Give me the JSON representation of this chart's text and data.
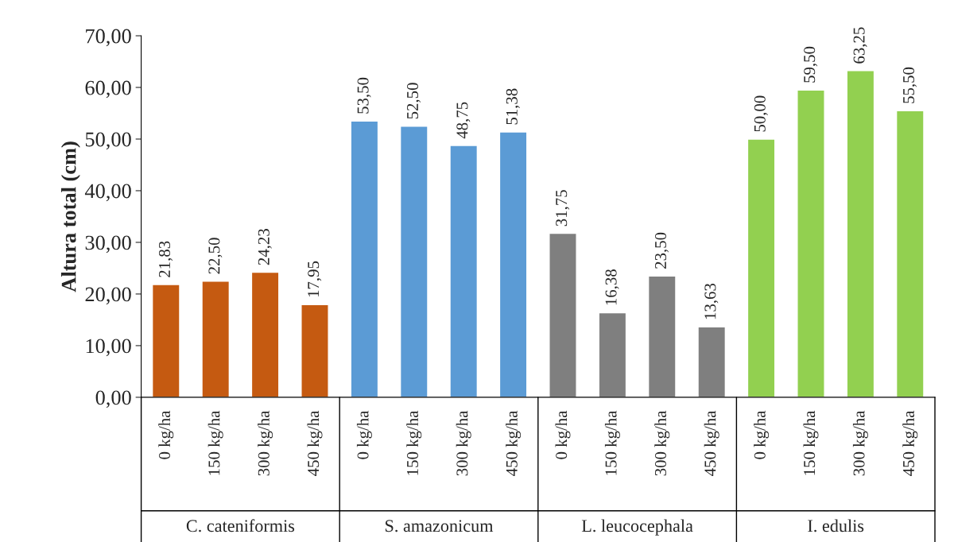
{
  "chart_data": {
    "type": "bar",
    "ylabel": "Altura total (cm)",
    "categories": [
      "0 kg/ha",
      "150 kg/ha",
      "300 kg/ha",
      "450 kg/ha",
      "0 kg/ha",
      "150 kg/ha",
      "300 kg/ha",
      "450 kg/ha",
      "0 kg/ha",
      "150 kg/ha",
      "300 kg/ha",
      "450 kg/ha",
      "0 kg/ha",
      "150 kg/ha",
      "300 kg/ha",
      "450 kg/ha"
    ],
    "values": [
      21.83,
      22.5,
      24.23,
      17.95,
      53.5,
      52.5,
      48.75,
      51.38,
      31.75,
      16.38,
      23.5,
      13.63,
      50.0,
      59.5,
      63.25,
      55.5
    ],
    "value_labels": [
      "21,83",
      "22,50",
      "24,23",
      "17,95",
      "53,50",
      "52,50",
      "48,75",
      "51,38",
      "31,75",
      "16,38",
      "23,50",
      "13,63",
      "50,00",
      "59,50",
      "63,25",
      "55,50"
    ],
    "colors": [
      "#c55a11",
      "#c55a11",
      "#c55a11",
      "#c55a11",
      "#5b9bd5",
      "#5b9bd5",
      "#5b9bd5",
      "#5b9bd5",
      "#7f7f7f",
      "#7f7f7f",
      "#7f7f7f",
      "#7f7f7f",
      "#92d050",
      "#92d050",
      "#92d050",
      "#92d050"
    ],
    "annotations": [
      "C. cateniformis",
      "S. amazonicum",
      "L. leucocephala",
      "I. edulis"
    ],
    "ylim": [
      0,
      70
    ],
    "yticks": [
      {
        "value": 0,
        "label": "0,00"
      },
      {
        "value": 10,
        "label": "10,00"
      },
      {
        "value": 20,
        "label": "20,00"
      },
      {
        "value": 30,
        "label": "30,00"
      },
      {
        "value": 40,
        "label": "40,00"
      },
      {
        "value": 50,
        "label": "50,00"
      },
      {
        "value": 60,
        "label": "60,00"
      },
      {
        "value": 70,
        "label": "70,00"
      }
    ],
    "grid": false,
    "legend": false
  }
}
